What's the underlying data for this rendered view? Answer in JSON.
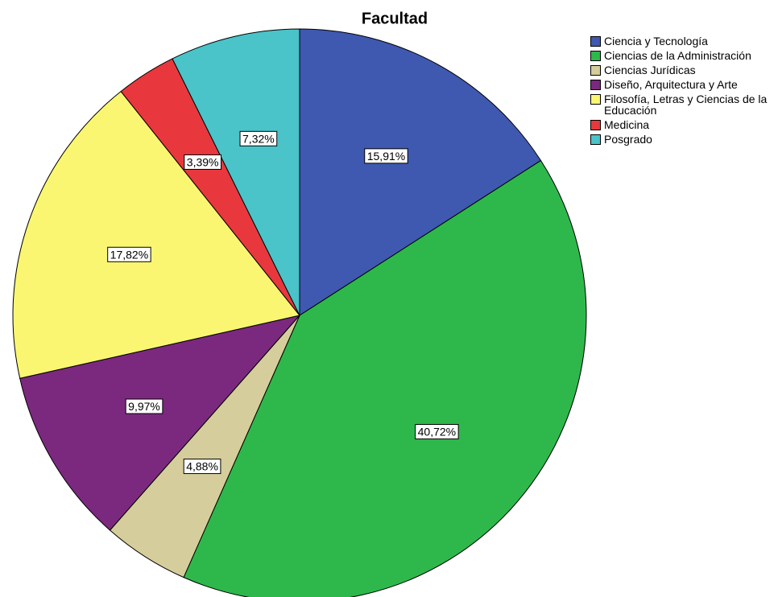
{
  "chart_data": {
    "type": "pie",
    "title": "Facultad",
    "categories": [
      "Ciencia y Tecnología",
      "Ciencias de la Administración",
      "Ciencias Jurídicas",
      "Diseño, Arquitectura y Arte",
      "Filosofía, Letras y Ciencias de la Educación",
      "Medicina",
      "Posgrado"
    ],
    "values": [
      15.91,
      40.72,
      4.88,
      9.97,
      17.82,
      3.39,
      7.32
    ],
    "value_labels": [
      "15,91%",
      "40,72%",
      "4,88%",
      "9,97%",
      "17,82%",
      "3,39%",
      "7,32%"
    ],
    "colors": [
      "#3f58b0",
      "#2eb84b",
      "#d5cd9b",
      "#7b297e",
      "#faf672",
      "#e8383d",
      "#4ac3c9"
    ],
    "legend": "upper right"
  }
}
